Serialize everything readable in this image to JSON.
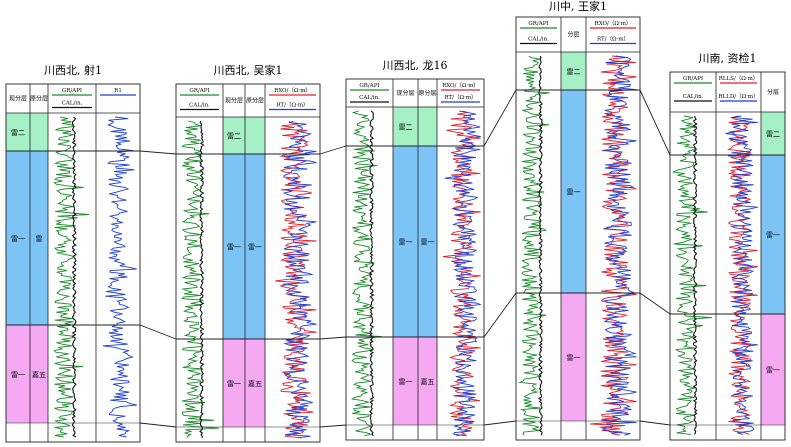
{
  "wells": [
    {
      "id": "w1",
      "title": "川西北, 射1",
      "columns": [
        {
          "kind": "zone",
          "header": "现分层"
        },
        {
          "kind": "zone",
          "header": "原分层"
        },
        {
          "kind": "curve",
          "labels": [
            "GR/API",
            "CAL/in."
          ],
          "colors": [
            "#1a8a2a",
            "#111111"
          ]
        },
        {
          "kind": "curve",
          "labels": [
            "R1"
          ],
          "colors": [
            "#1f3fd6"
          ]
        }
      ],
      "zones": [
        {
          "name": "雷二",
          "color": "#a6f0c6"
        },
        {
          "name": "雷一",
          "color": "#7cc4f6",
          "alt": "雷"
        },
        {
          "name": "雷一",
          "color": "#f4a9f2",
          "alt": "嘉五"
        }
      ]
    },
    {
      "id": "w2",
      "title": "川西北, 吴家1",
      "columns": [
        {
          "kind": "curve",
          "labels": [
            "GR/API",
            "CAL/in."
          ],
          "colors": [
            "#1a8a2a",
            "#111111"
          ]
        },
        {
          "kind": "zone",
          "header": "现分层"
        },
        {
          "kind": "zone",
          "header": "原分层"
        },
        {
          "kind": "curve",
          "labels": [
            "RXO/（Ω·m）",
            "RT/（Ω·m）"
          ],
          "colors": [
            "#e0202a",
            "#1f3fd6"
          ]
        }
      ],
      "zones": [
        {
          "name": "雷二",
          "color": "#a6f0c6"
        },
        {
          "name": "雷一",
          "color": "#7cc4f6",
          "alt": "雷一"
        },
        {
          "name": "雷一",
          "color": "#f4a9f2",
          "alt": "嘉五"
        }
      ]
    },
    {
      "id": "w3",
      "title": "川西北, 龙16",
      "columns": [
        {
          "kind": "curve",
          "labels": [
            "GR/API",
            "CAL/in."
          ],
          "colors": [
            "#1a8a2a",
            "#111111"
          ]
        },
        {
          "kind": "zone",
          "header": "现分层"
        },
        {
          "kind": "zone",
          "header": "原分层"
        },
        {
          "kind": "curve",
          "labels": [
            "RXO/（Ω·m）",
            "RT/（Ω·m）"
          ],
          "colors": [
            "#e0202a",
            "#1f3fd6"
          ]
        }
      ],
      "zones": [
        {
          "name": "雷二",
          "color": "#a6f0c6"
        },
        {
          "name": "雷一",
          "color": "#7cc4f6",
          "alt": "雷一"
        },
        {
          "name": "雷一",
          "color": "#f4a9f2",
          "alt": "嘉五"
        }
      ]
    },
    {
      "id": "w4",
      "title": "川中, 王家1",
      "columns": [
        {
          "kind": "curve",
          "labels": [
            "GR/API",
            "CAL/in."
          ],
          "colors": [
            "#1a8a2a",
            "#111111"
          ]
        },
        {
          "kind": "zone",
          "header": "分层"
        },
        {
          "kind": "curve",
          "labels": [
            "RXO/（Ω·m）",
            "RT/（Ω·m）"
          ],
          "colors": [
            "#e0202a",
            "#1f3fd6"
          ]
        }
      ],
      "zones": [
        {
          "name": "雷二",
          "color": "#a6f0c6"
        },
        {
          "name": "雷一",
          "color": "#7cc4f6"
        },
        {
          "name": "雷一",
          "color": "#f4a9f2"
        }
      ]
    },
    {
      "id": "w5",
      "title": "川南, 资检1",
      "columns": [
        {
          "kind": "curve",
          "labels": [
            "GR/API",
            "CAL/in."
          ],
          "colors": [
            "#1a8a2a",
            "#111111"
          ]
        },
        {
          "kind": "curve",
          "labels": [
            "RLLS/（Ω·m）",
            "RLLD/（Ω·m）"
          ],
          "colors": [
            "#e0202a",
            "#1f3fd6"
          ]
        },
        {
          "kind": "zone",
          "header": "分层"
        }
      ],
      "zones": [
        {
          "name": "雷二",
          "color": "#a6f0c6"
        },
        {
          "name": "雷一",
          "color": "#7cc4f6"
        },
        {
          "name": "雷一",
          "color": "#f4a9f2"
        }
      ]
    }
  ]
}
